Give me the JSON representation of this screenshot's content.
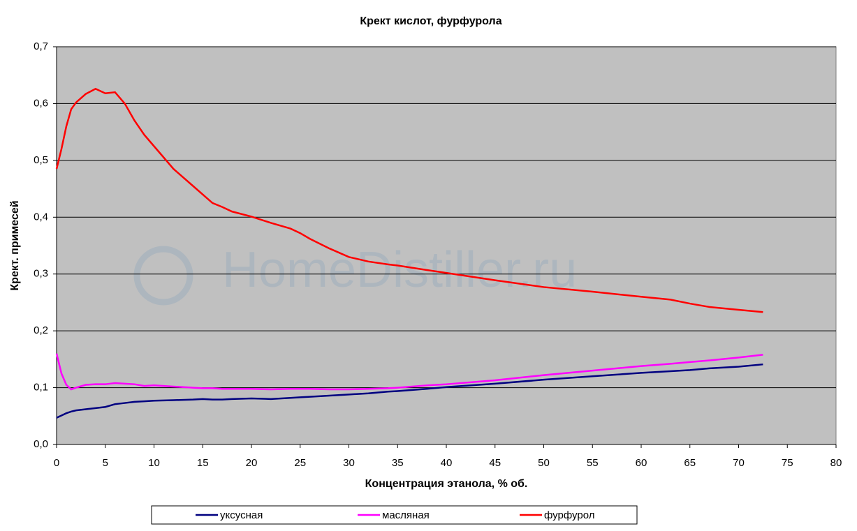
{
  "chart_data": {
    "type": "line",
    "title": "Крект кислот, фурфурола",
    "xlabel": "Концентрация этанола, % об.",
    "ylabel": "Крект. примесей",
    "watermark": "HomeDistiller.ru",
    "x": [
      0,
      0.5,
      1,
      1.5,
      2,
      3,
      4,
      5,
      6,
      7,
      8,
      9,
      10,
      12,
      14,
      15,
      16,
      17,
      18,
      20,
      22,
      24,
      25,
      26,
      28,
      30,
      32,
      34,
      35,
      38,
      40,
      45,
      50,
      55,
      60,
      63,
      65,
      67,
      70,
      72.5
    ],
    "series": [
      {
        "name": "уксусная",
        "color": "#000080",
        "values": [
          0.047,
          0.051,
          0.055,
          0.058,
          0.06,
          0.062,
          0.064,
          0.066,
          0.071,
          0.073,
          0.075,
          0.076,
          0.077,
          0.078,
          0.079,
          0.08,
          0.079,
          0.079,
          0.08,
          0.081,
          0.08,
          0.082,
          0.083,
          0.084,
          0.086,
          0.088,
          0.09,
          0.093,
          0.094,
          0.098,
          0.101,
          0.107,
          0.114,
          0.12,
          0.126,
          0.129,
          0.131,
          0.134,
          0.137,
          0.141
        ]
      },
      {
        "name": "масляная",
        "color": "#ff00ff",
        "values": [
          0.16,
          0.125,
          0.105,
          0.097,
          0.1,
          0.105,
          0.106,
          0.106,
          0.108,
          0.107,
          0.106,
          0.103,
          0.104,
          0.102,
          0.1,
          0.099,
          0.099,
          0.098,
          0.098,
          0.098,
          0.097,
          0.098,
          0.098,
          0.098,
          0.097,
          0.097,
          0.098,
          0.099,
          0.1,
          0.104,
          0.106,
          0.113,
          0.122,
          0.13,
          0.138,
          0.142,
          0.145,
          0.148,
          0.153,
          0.158
        ]
      },
      {
        "name": "фурфурол",
        "color": "#ff0000",
        "values": [
          0.485,
          0.52,
          0.56,
          0.59,
          0.602,
          0.617,
          0.626,
          0.618,
          0.62,
          0.6,
          0.57,
          0.545,
          0.525,
          0.485,
          0.455,
          0.44,
          0.425,
          0.418,
          0.41,
          0.401,
          0.39,
          0.38,
          0.372,
          0.362,
          0.345,
          0.33,
          0.322,
          0.317,
          0.315,
          0.307,
          0.302,
          0.289,
          0.277,
          0.269,
          0.26,
          0.255,
          0.248,
          0.242,
          0.237,
          0.233
        ]
      }
    ],
    "xlim": [
      0,
      80
    ],
    "xticks": [
      0,
      5,
      10,
      15,
      20,
      25,
      30,
      35,
      40,
      45,
      50,
      55,
      60,
      65,
      70,
      75,
      80
    ],
    "ylim": [
      0,
      0.7
    ],
    "yticks": [
      {
        "value": 0,
        "label": "0,0"
      },
      {
        "value": 0.1,
        "label": "0,1"
      },
      {
        "value": 0.2,
        "label": "0,2"
      },
      {
        "value": 0.3,
        "label": "0,3"
      },
      {
        "value": 0.4,
        "label": "0,4"
      },
      {
        "value": 0.5,
        "label": "0,5"
      },
      {
        "value": 0.6,
        "label": "0,6"
      },
      {
        "value": 0.7,
        "label": "0,7"
      }
    ],
    "grid": true,
    "legend_position": "bottom",
    "plot_background": "#c0c0c0"
  }
}
